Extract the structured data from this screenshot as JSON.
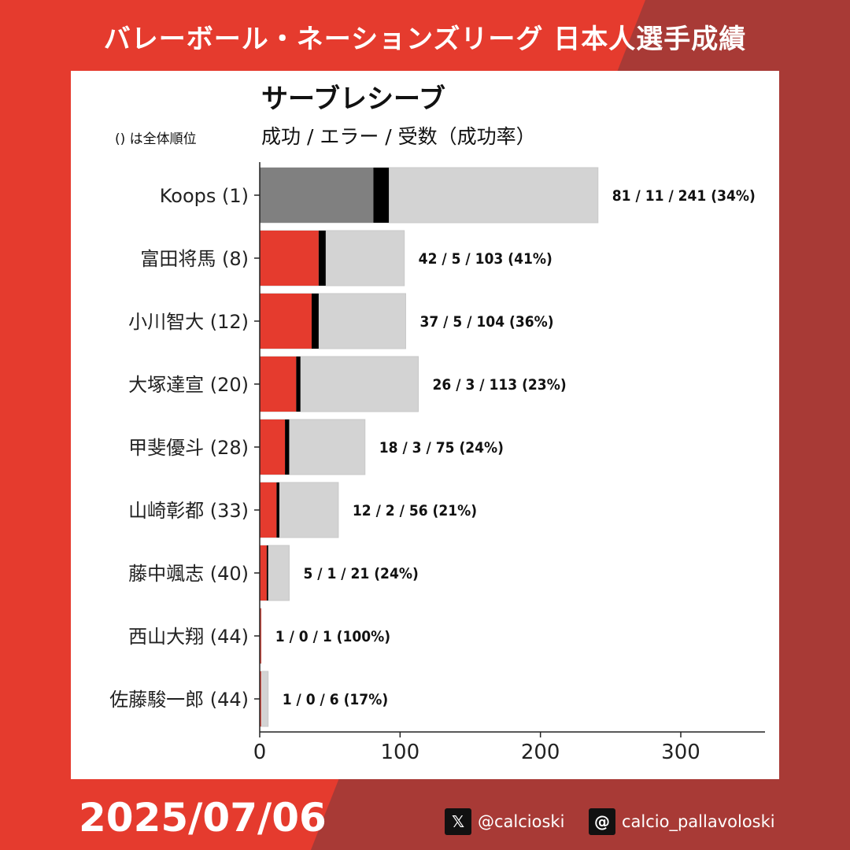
{
  "header": {
    "title": "バレーボール・ネーションズリーグ 日本人選手成績"
  },
  "panel": {
    "rank_note": "() は全体順位"
  },
  "footer": {
    "date": "2025/07/06",
    "social": [
      {
        "icon": "x-logo-icon",
        "handle": "@calcioski"
      },
      {
        "icon": "threads-logo-icon",
        "handle": "calcio_pallavoloski"
      }
    ]
  },
  "colors": {
    "background": "#e53b2e",
    "background_dark": "#a83a36",
    "success_japanese": "#e53b2e",
    "success_top": "#808080",
    "error": "#000000",
    "total": "#d3d3d3"
  },
  "chart_data": {
    "type": "bar",
    "orientation": "horizontal",
    "stacked": true,
    "title": "サーブレシーブ",
    "subtitle": "成功 / エラー / 受数（成功率）",
    "categories": [
      "Koops (1)",
      "富田将馬 (8)",
      "小川智大 (12)",
      "大塚達宣 (20)",
      "甲斐優斗 (28)",
      "山崎彰都 (33)",
      "藤中颯志 (40)",
      "西山大翔 (44)",
      "佐藤駿一郎 (44)"
    ],
    "series": [
      {
        "name": "成功",
        "values": [
          81,
          42,
          37,
          26,
          18,
          12,
          5,
          1,
          1
        ]
      },
      {
        "name": "エラー",
        "values": [
          11,
          5,
          5,
          3,
          3,
          2,
          1,
          0,
          0
        ]
      },
      {
        "name": "受数",
        "values": [
          241,
          103,
          104,
          113,
          75,
          56,
          21,
          1,
          6
        ]
      }
    ],
    "labels": [
      "81 / 11 / 241  (34%)",
      "42 / 5 / 103  (41%)",
      "37 / 5 / 104  (36%)",
      "26 / 3 / 113  (23%)",
      "18 / 3 / 75  (24%)",
      "12 / 2 / 56  (21%)",
      "5 / 1 / 21  (24%)",
      "1 / 0 / 1  (100%)",
      "1 / 0 / 6  (17%)"
    ],
    "xlim": [
      0,
      360
    ],
    "xticks": [
      0,
      100,
      200,
      300
    ],
    "grid": false
  }
}
